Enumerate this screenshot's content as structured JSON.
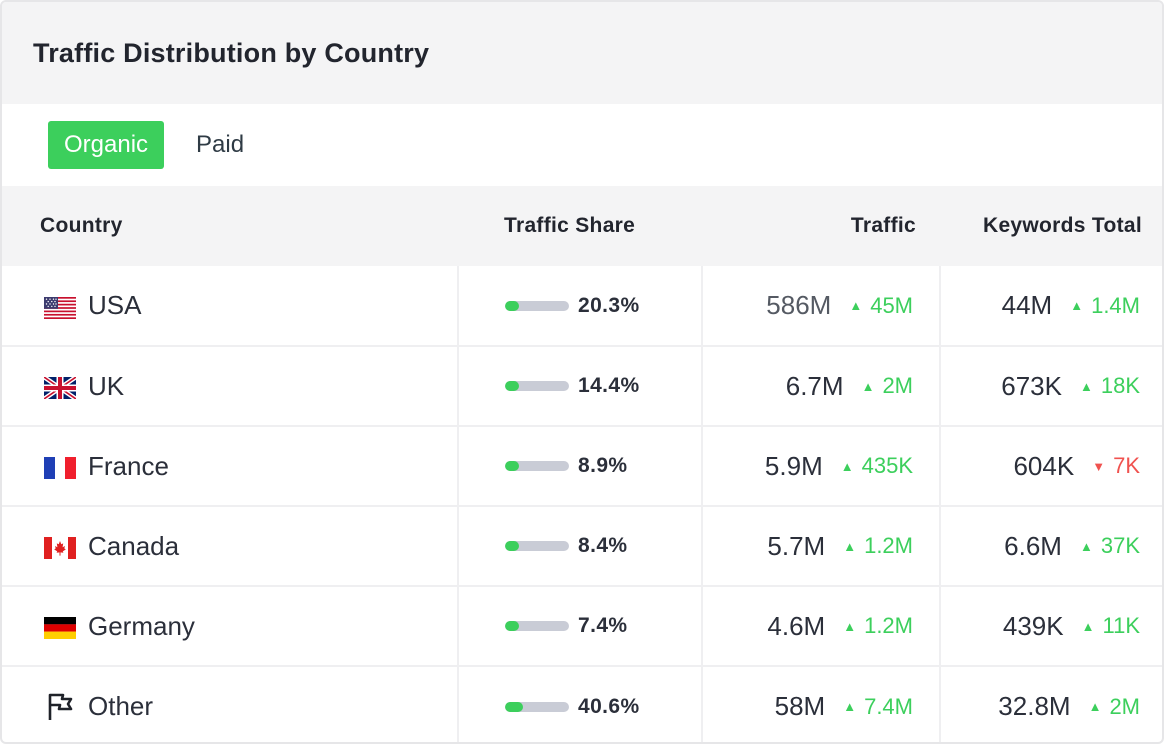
{
  "widget": {
    "title": "Traffic Distribution by Country",
    "tabs": [
      {
        "label": "Organic",
        "active": true
      },
      {
        "label": "Paid",
        "active": false
      }
    ]
  },
  "table": {
    "headers": {
      "country": "Country",
      "share": "Traffic Share",
      "traffic": "Traffic",
      "keywords": "Keywords Total"
    },
    "rows": [
      {
        "flag": "us-flag-icon",
        "country": "USA",
        "share_pct": 20.3,
        "share": "20.3%",
        "traffic": "586M",
        "traffic_delta": "45M",
        "traffic_dir": "up",
        "keywords": "44M",
        "keywords_delta": "1.4M",
        "keywords_dir": "up"
      },
      {
        "flag": "uk-flag-icon",
        "country": "UK",
        "share_pct": 14.4,
        "share": "14.4%",
        "traffic": "6.7M",
        "traffic_delta": "2M",
        "traffic_dir": "up",
        "keywords": "673K",
        "keywords_delta": "18K",
        "keywords_dir": "up"
      },
      {
        "flag": "france-flag-icon",
        "country": "France",
        "share_pct": 8.9,
        "share": "8.9%",
        "traffic": "5.9M",
        "traffic_delta": "435K",
        "traffic_dir": "up",
        "keywords": "604K",
        "keywords_delta": "7K",
        "keywords_dir": "down"
      },
      {
        "flag": "canada-flag-icon",
        "country": "Canada",
        "share_pct": 8.4,
        "share": "8.4%",
        "traffic": "5.7M",
        "traffic_delta": "1.2M",
        "traffic_dir": "up",
        "keywords": "6.6M",
        "keywords_delta": "37K",
        "keywords_dir": "up"
      },
      {
        "flag": "germany-flag-icon",
        "country": "Germany",
        "share_pct": 7.4,
        "share": "7.4%",
        "traffic": "4.6M",
        "traffic_delta": "1.2M",
        "traffic_dir": "up",
        "keywords": "439K",
        "keywords_delta": "11K",
        "keywords_dir": "up"
      },
      {
        "flag": "flag-outline-icon",
        "country": "Other",
        "share_pct": 40.6,
        "share": "40.6%",
        "traffic": "58M",
        "traffic_delta": "7.4M",
        "traffic_dir": "up",
        "keywords": "32.8M",
        "keywords_delta": "2M",
        "keywords_dir": "up"
      }
    ]
  },
  "colors": {
    "accent": "#3ccf5c",
    "up": "#3ccf5c",
    "down": "#f0524f",
    "bar_track": "#c9ccd6",
    "header_bg": "#f4f4f5"
  }
}
